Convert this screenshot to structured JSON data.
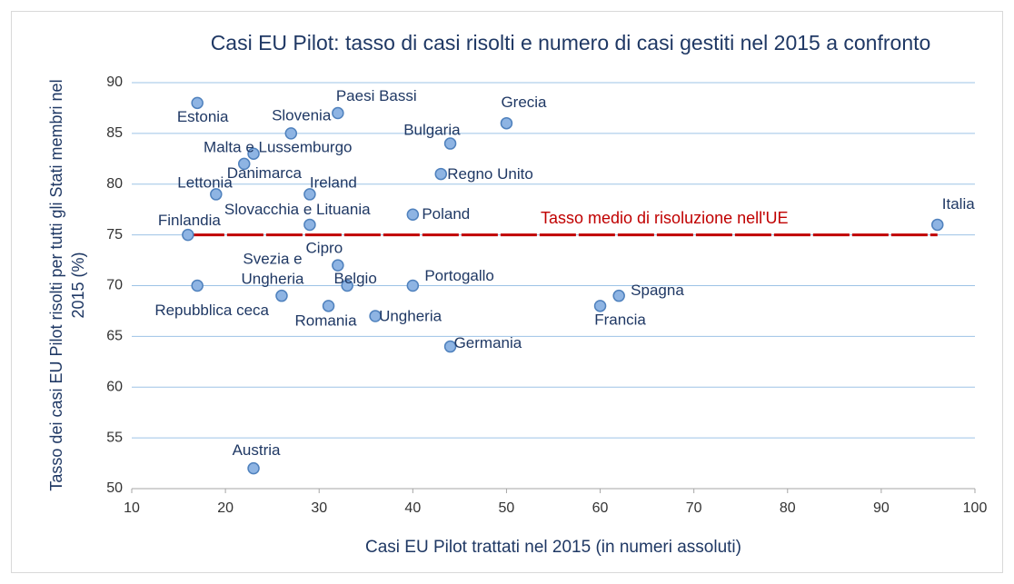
{
  "chart_data": {
    "type": "scatter",
    "title": "Casi EU Pilot: tasso di casi risolti e numero di casi gestiti nel 2015 a confronto",
    "x_label": "Casi EU Pilot trattati nel 2015 (in numeri assoluti)",
    "y_label": "Tasso dei casi EU Pilot risolti per tutti gli Stati membri nel 2015 (%)",
    "xlim": [
      10,
      100
    ],
    "xticks": [
      10,
      20,
      30,
      40,
      50,
      60,
      70,
      80,
      90,
      100
    ],
    "ylim": [
      50,
      90
    ],
    "yticks": [
      50,
      55,
      60,
      65,
      70,
      75,
      80,
      85,
      90
    ],
    "grid": true,
    "series": [
      {
        "color": "#8eb4e3",
        "labels": [
          "Estonia",
          "Slovenia",
          "Paesi Bassi",
          "Grecia",
          "Bulgaria",
          "Malta e Lussemburgo",
          "Danimarca",
          "Regno Unito",
          "Lettonia",
          "Ireland",
          "Slovacchia e Lituania",
          "Poland",
          "Italia",
          "Finlandia",
          "Cipro",
          "Repubblica ceca",
          "Svezia e Ungheria",
          "Belgio",
          "Portogallo",
          "Romania",
          "Ungheria",
          "Spagna",
          "Francia",
          "Germania",
          "Austria"
        ],
        "x": [
          17,
          27,
          32,
          50,
          44,
          23,
          22,
          43,
          19,
          29,
          29,
          40,
          96,
          16,
          32,
          17,
          26,
          33,
          40,
          31,
          36,
          62,
          60,
          44,
          23
        ],
        "values": [
          88,
          85,
          87,
          86,
          84,
          83,
          82,
          81,
          79,
          79,
          76,
          77,
          76,
          75,
          72,
          70,
          69,
          70,
          70,
          68,
          67,
          69,
          68,
          64,
          52
        ]
      }
    ],
    "average_line": {
      "label": "Tasso medio di risoluzione nell'UE",
      "x": [
        16,
        96
      ],
      "value": 75,
      "color": "#c00000"
    }
  }
}
